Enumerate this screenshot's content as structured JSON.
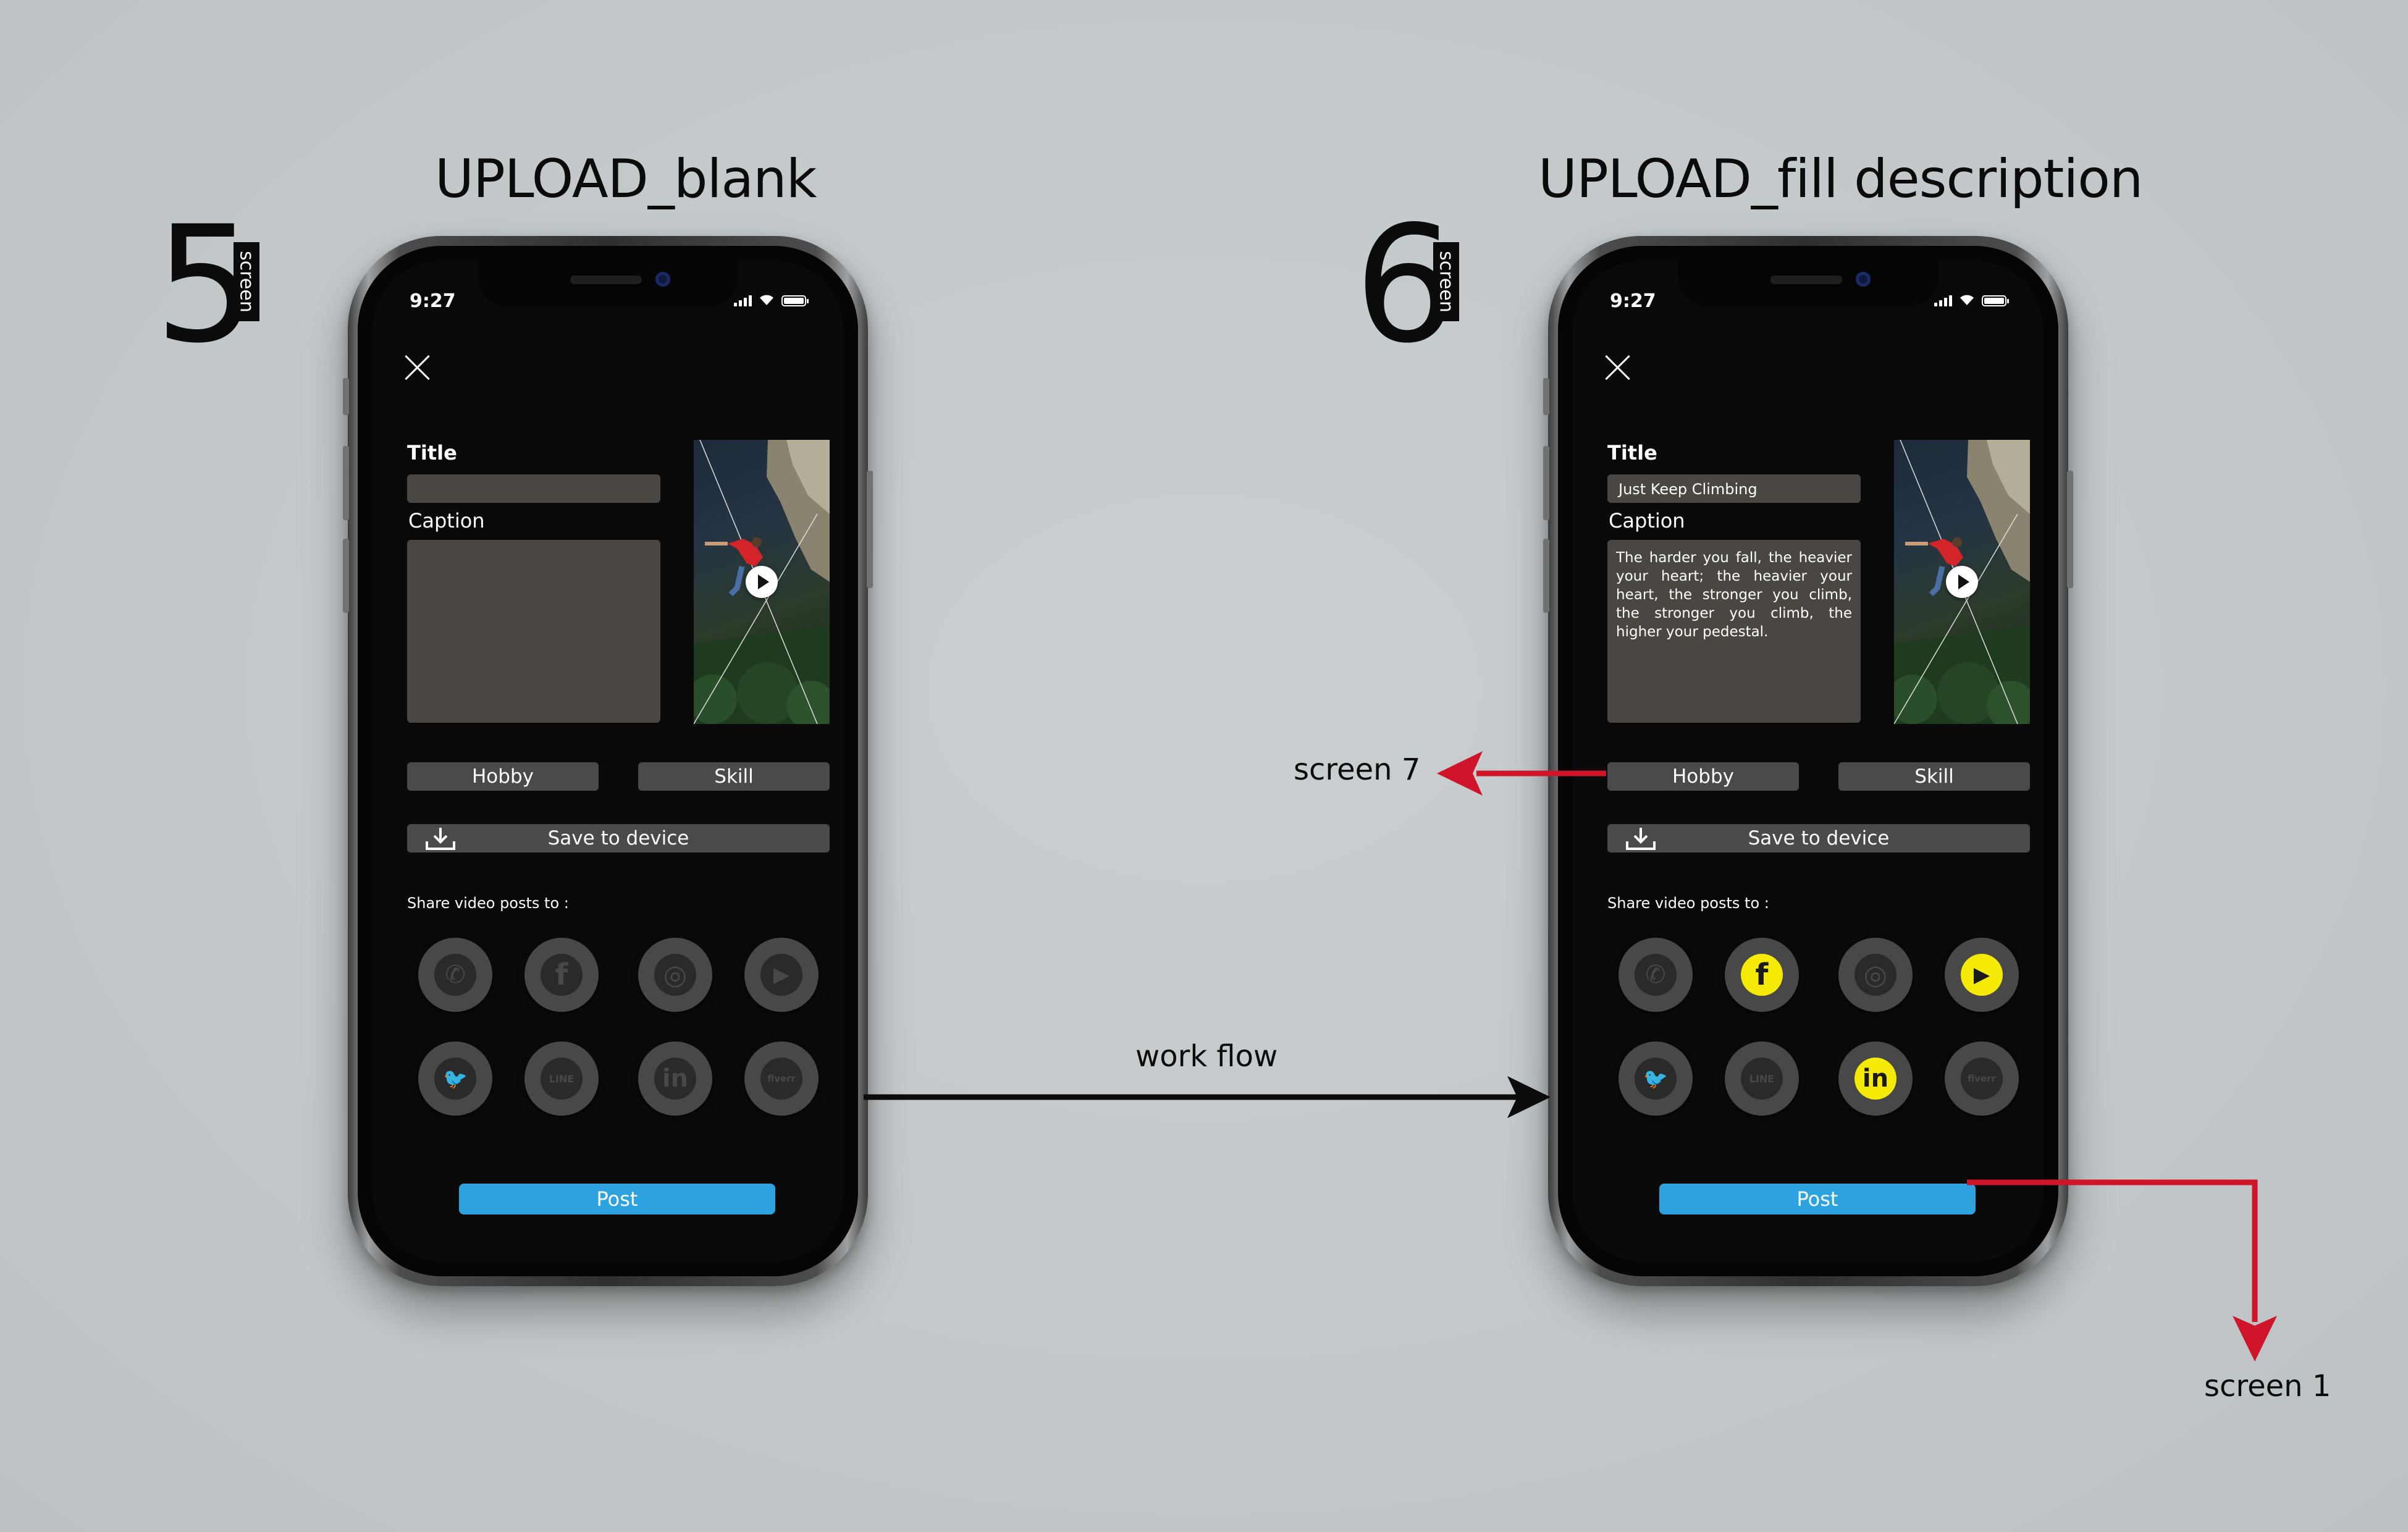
{
  "screens": [
    {
      "number": "5",
      "tag": "screen",
      "heading": "UPLOAD_blank",
      "status": {
        "time": "9:27"
      },
      "form": {
        "title_label": "Title",
        "title_value": "",
        "caption_label": "Caption",
        "caption_value": "",
        "hobby_label": "Hobby",
        "skill_label": "Skill",
        "save_label": "Save to device",
        "share_label": "Share video posts to :",
        "post_label": "Post"
      },
      "social": [
        {
          "name": "whatsapp",
          "glyph": "✆",
          "selected": false
        },
        {
          "name": "facebook",
          "glyph": "f",
          "selected": false
        },
        {
          "name": "instagram",
          "glyph": "◎",
          "selected": false
        },
        {
          "name": "youtube",
          "glyph": "▶",
          "selected": false
        },
        {
          "name": "twitter",
          "glyph": "🐦",
          "selected": false
        },
        {
          "name": "line",
          "glyph": "LINE",
          "selected": false
        },
        {
          "name": "linkedin",
          "glyph": "in",
          "selected": false
        },
        {
          "name": "fiverr",
          "glyph": "fiverr",
          "selected": false
        }
      ]
    },
    {
      "number": "6",
      "tag": "screen",
      "heading": "UPLOAD_fill description",
      "status": {
        "time": "9:27"
      },
      "form": {
        "title_label": "Title",
        "title_value": "Just Keep Climbing",
        "caption_label": "Caption",
        "caption_value": "The harder you fall, the heavier your heart; the heavier your heart, the stronger you climb, the stronger you climb, the higher your pedestal.",
        "hobby_label": "Hobby",
        "skill_label": "Skill",
        "save_label": "Save to device",
        "share_label": "Share video posts to :",
        "post_label": "Post"
      },
      "social": [
        {
          "name": "whatsapp",
          "glyph": "✆",
          "selected": false
        },
        {
          "name": "facebook",
          "glyph": "f",
          "selected": true
        },
        {
          "name": "instagram",
          "glyph": "◎",
          "selected": false
        },
        {
          "name": "youtube",
          "glyph": "▶",
          "selected": true
        },
        {
          "name": "twitter",
          "glyph": "🐦",
          "selected": false
        },
        {
          "name": "line",
          "glyph": "LINE",
          "selected": false
        },
        {
          "name": "linkedin",
          "glyph": "in",
          "selected": true
        },
        {
          "name": "fiverr",
          "glyph": "fiverr",
          "selected": false
        }
      ]
    }
  ],
  "annotations": {
    "workflow": "work flow",
    "screen7": "screen 7",
    "screen1": "screen 1"
  },
  "colors": {
    "accent_blue": "#2ea2df",
    "selected_yellow": "#f4ea05",
    "arrow_red": "#d0142a"
  }
}
